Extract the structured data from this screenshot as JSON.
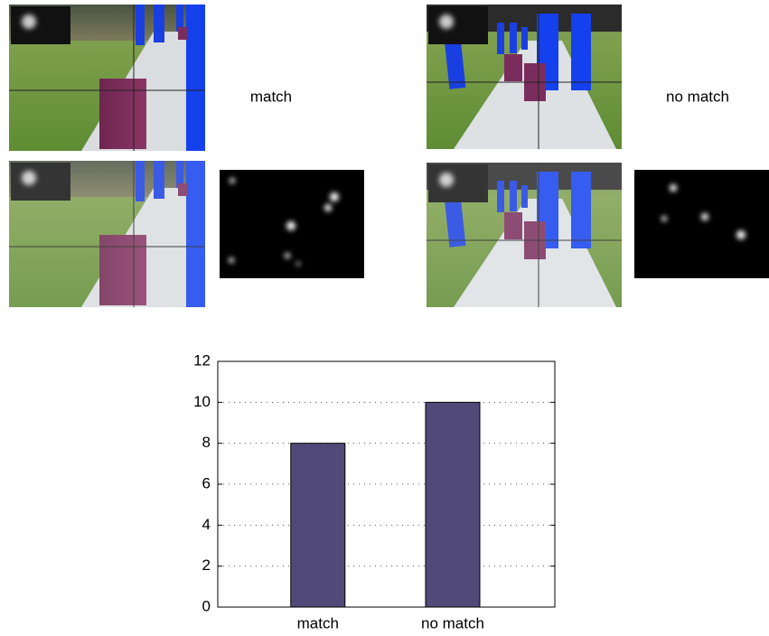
{
  "panels": [
    {
      "label": "match"
    },
    {
      "label": "no match"
    }
  ],
  "chart_data": {
    "type": "bar",
    "categories": [
      "match",
      "no match"
    ],
    "values": [
      8,
      10
    ],
    "color": "#514a78",
    "ylim": [
      0,
      12
    ],
    "yticks": [
      0,
      2,
      4,
      6,
      8,
      10,
      12
    ],
    "grid": true
  }
}
